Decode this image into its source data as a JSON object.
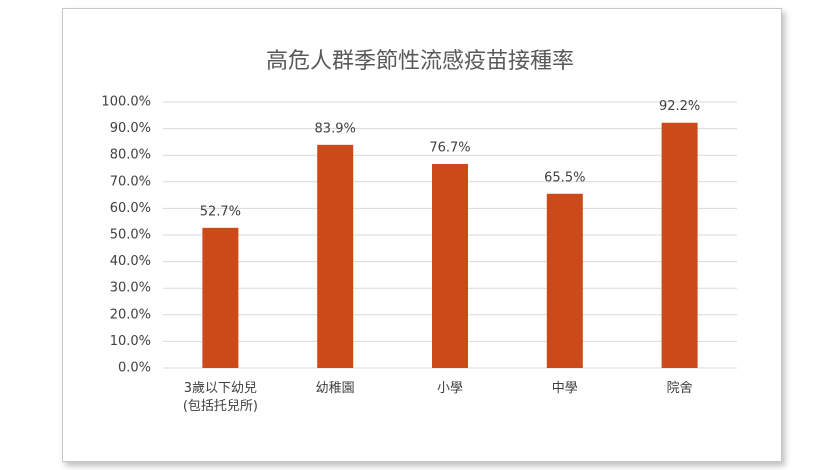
{
  "chart_data": {
    "type": "bar",
    "title": "高危人群季節性流感疫苗接種率",
    "categories": [
      "3歲以下幼兒\n(包括托兒所)",
      "幼稚園",
      "小學",
      "中學",
      "院舍"
    ],
    "values": [
      52.7,
      83.9,
      76.7,
      65.5,
      92.2
    ],
    "value_labels": [
      "52.7%",
      "83.9%",
      "76.7%",
      "65.5%",
      "92.2%"
    ],
    "color": "#cc4a1a",
    "ylim": [
      0,
      100
    ],
    "yticks": [
      {
        "value": 0,
        "label": "0.0%"
      },
      {
        "value": 10,
        "label": "10.0%"
      },
      {
        "value": 20,
        "label": "20.0%"
      },
      {
        "value": 30,
        "label": "30.0%"
      },
      {
        "value": 40,
        "label": "40.0%"
      },
      {
        "value": 50,
        "label": "50.0%"
      },
      {
        "value": 60,
        "label": "60.0%"
      },
      {
        "value": 70,
        "label": "70.0%"
      },
      {
        "value": 80,
        "label": "80.0%"
      },
      {
        "value": 90,
        "label": "90.0%"
      },
      {
        "value": 100,
        "label": "100.0%"
      }
    ],
    "grid": true
  }
}
